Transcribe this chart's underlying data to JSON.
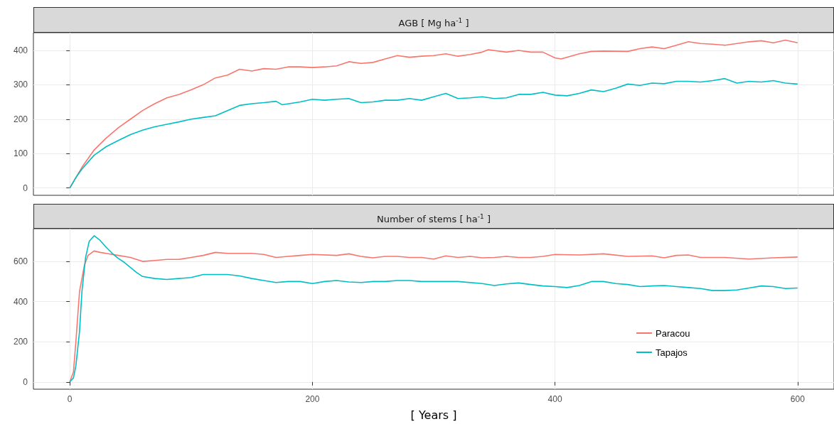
{
  "chart_data": [
    {
      "type": "line",
      "title": "AGB [ Mg ha$^{-1}$ ]",
      "xlim": [
        -30,
        630
      ],
      "xticks": [
        0,
        200,
        400,
        600
      ],
      "ylim": [
        -21.5,
        451.5
      ],
      "yticks": [
        0,
        100,
        200,
        300,
        400
      ],
      "grid": true,
      "tick_labels": "y",
      "series": [
        {
          "color": "#f8766d",
          "x": [
            0,
            5,
            10,
            20,
            30,
            40,
            50,
            60,
            70,
            80,
            90,
            100,
            110,
            120,
            130,
            140,
            150,
            160,
            170,
            180,
            190,
            200,
            210,
            220,
            230,
            240,
            250,
            260,
            270,
            280,
            290,
            300,
            310,
            320,
            330,
            340,
            345,
            360,
            370,
            380,
            390,
            400,
            405,
            420,
            430,
            440,
            460,
            470,
            480,
            490,
            500,
            510,
            520,
            530,
            540,
            550,
            560,
            570,
            580,
            590,
            600
          ],
          "values": [
            0,
            30,
            60,
            110,
            145,
            175,
            200,
            225,
            245,
            262,
            272,
            285,
            300,
            320,
            328,
            345,
            340,
            347,
            345,
            352,
            352,
            350,
            352,
            355,
            367,
            362,
            365,
            375,
            385,
            380,
            383,
            385,
            390,
            383,
            388,
            395,
            402,
            395,
            400,
            395,
            395,
            378,
            375,
            390,
            397,
            398,
            397,
            405,
            410,
            405,
            415,
            425,
            420,
            418,
            415,
            420,
            425,
            428,
            422,
            430,
            422
          ]
        },
        {
          "color": "#00bfc4",
          "x": [
            0,
            5,
            10,
            20,
            30,
            40,
            50,
            60,
            70,
            80,
            90,
            100,
            110,
            120,
            130,
            140,
            150,
            160,
            170,
            175,
            190,
            200,
            210,
            220,
            230,
            240,
            250,
            260,
            270,
            280,
            290,
            300,
            310,
            320,
            330,
            340,
            350,
            360,
            370,
            380,
            390,
            400,
            410,
            420,
            430,
            440,
            450,
            460,
            470,
            480,
            490,
            500,
            510,
            520,
            530,
            540,
            550,
            560,
            570,
            580,
            590,
            600
          ],
          "values": [
            0,
            30,
            55,
            95,
            120,
            138,
            155,
            168,
            178,
            185,
            192,
            200,
            205,
            210,
            225,
            240,
            245,
            248,
            252,
            242,
            250,
            258,
            255,
            258,
            260,
            248,
            250,
            255,
            255,
            260,
            255,
            265,
            275,
            260,
            262,
            265,
            260,
            262,
            272,
            272,
            278,
            270,
            268,
            275,
            285,
            280,
            290,
            302,
            298,
            305,
            303,
            310,
            310,
            308,
            312,
            318,
            305,
            310,
            308,
            312,
            305,
            302
          ]
        }
      ]
    },
    {
      "type": "line",
      "title": "Number of stems [ ha$^{-1}$ ]",
      "xlabel": "[ Years ]",
      "xlim": [
        -30,
        630
      ],
      "xticks": [
        0,
        200,
        400,
        600
      ],
      "ylim": [
        -36,
        763
      ],
      "yticks": [
        0,
        200,
        400,
        600
      ],
      "grid": true,
      "legend": "right",
      "series": [
        {
          "name": "Paracou",
          "color": "#f8766d",
          "x": [
            0,
            3,
            5,
            8,
            12,
            15,
            20,
            25,
            30,
            40,
            50,
            60,
            70,
            80,
            90,
            100,
            110,
            120,
            130,
            140,
            150,
            160,
            170,
            180,
            190,
            200,
            220,
            230,
            240,
            250,
            260,
            270,
            280,
            290,
            300,
            310,
            320,
            330,
            340,
            350,
            360,
            370,
            380,
            390,
            400,
            420,
            440,
            460,
            480,
            490,
            500,
            510,
            520,
            540,
            560,
            580,
            600
          ],
          "values": [
            0,
            50,
            200,
            450,
            580,
            630,
            652,
            645,
            640,
            630,
            620,
            600,
            605,
            610,
            610,
            620,
            630,
            645,
            640,
            640,
            640,
            635,
            620,
            625,
            630,
            635,
            630,
            638,
            625,
            618,
            625,
            625,
            620,
            620,
            612,
            628,
            620,
            625,
            618,
            620,
            625,
            620,
            620,
            625,
            635,
            632,
            638,
            625,
            628,
            618,
            630,
            632,
            620,
            620,
            612,
            618,
            622
          ]
        },
        {
          "name": "Tapajos",
          "color": "#00bfc4",
          "x": [
            0,
            3,
            5,
            8,
            10,
            13,
            16,
            20,
            25,
            30,
            35,
            40,
            45,
            50,
            55,
            60,
            70,
            80,
            90,
            100,
            110,
            120,
            130,
            140,
            150,
            160,
            170,
            180,
            190,
            200,
            210,
            220,
            230,
            240,
            250,
            260,
            270,
            280,
            290,
            300,
            320,
            340,
            350,
            360,
            370,
            380,
            390,
            400,
            410,
            420,
            430,
            440,
            450,
            460,
            470,
            480,
            490,
            500,
            510,
            520,
            530,
            540,
            550,
            560,
            570,
            580,
            590,
            600
          ],
          "values": [
            0,
            20,
            80,
            250,
            450,
            620,
            700,
            728,
            705,
            670,
            640,
            615,
            595,
            570,
            545,
            525,
            515,
            510,
            515,
            520,
            535,
            535,
            535,
            528,
            515,
            505,
            495,
            500,
            500,
            490,
            500,
            505,
            498,
            495,
            500,
            500,
            505,
            505,
            500,
            500,
            500,
            490,
            480,
            488,
            493,
            485,
            478,
            475,
            470,
            480,
            500,
            500,
            490,
            485,
            475,
            478,
            480,
            475,
            470,
            465,
            455,
            455,
            458,
            468,
            478,
            475,
            465,
            468
          ]
        }
      ]
    }
  ]
}
